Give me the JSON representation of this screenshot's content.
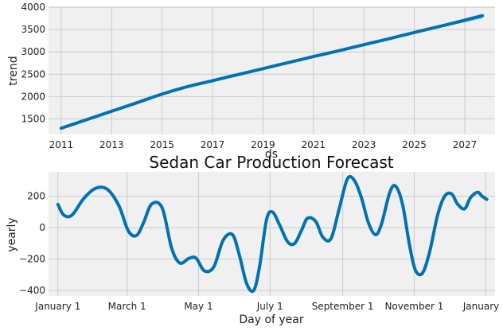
{
  "chart_data": [
    {
      "type": "line",
      "title": "",
      "xlabel": "ds",
      "ylabel": "trend",
      "xlim": [
        2010.5,
        2028.2
      ],
      "ylim": [
        1150,
        4020
      ],
      "x_ticks": [
        2011,
        2013,
        2015,
        2017,
        2019,
        2021,
        2023,
        2025,
        2027
      ],
      "x_tick_labels": [
        "2011",
        "2013",
        "2015",
        "2017",
        "2019",
        "2021",
        "2023",
        "2025",
        "2027"
      ],
      "y_ticks": [
        1500,
        2000,
        2500,
        3000,
        3500,
        4000
      ],
      "y_tick_labels": [
        "1500",
        "2000",
        "2500",
        "3000",
        "3500",
        "4000"
      ],
      "grid": true,
      "series": [
        {
          "color": "#0072B2",
          "x": [
            2011,
            2012,
            2013,
            2014,
            2015,
            2016,
            2017,
            2018,
            2019,
            2020,
            2021,
            2022,
            2023,
            2024,
            2025,
            2026,
            2027,
            2027.7
          ],
          "y": [
            1290,
            1480,
            1670,
            1860,
            2055,
            2220,
            2355,
            2490,
            2625,
            2760,
            2895,
            3025,
            3160,
            3295,
            3435,
            3570,
            3710,
            3810
          ]
        }
      ],
      "uncertainty_band": {
        "x": [
          2025.2,
          2026,
          2027,
          2027.7
        ],
        "lower": [
          3440,
          3540,
          3660,
          3740
        ],
        "upper": [
          3470,
          3595,
          3755,
          3860
        ],
        "color": "#0072B2"
      }
    },
    {
      "type": "line",
      "title": "Sedan Car Production Forecast",
      "xlabel": "Day of year",
      "ylabel": "yearly",
      "xlim": [
        -8,
        373
      ],
      "ylim": [
        -435,
        355
      ],
      "x_ticks": [
        0,
        59,
        120,
        181,
        243,
        304,
        365
      ],
      "x_tick_labels": [
        "January 1",
        "March 1",
        "May 1",
        "July 1",
        "September 1",
        "November 1",
        "January 1"
      ],
      "y_ticks": [
        -400,
        -200,
        0,
        200
      ],
      "y_tick_labels": [
        "−400",
        "−200",
        "0",
        "200"
      ],
      "grid": true,
      "series": [
        {
          "color": "#0072B2",
          "x": [
            0,
            5,
            12,
            22,
            32,
            42,
            52,
            60,
            67,
            73,
            80,
            89,
            97,
            104,
            112,
            118,
            125,
            133,
            141,
            149,
            155,
            161,
            167,
            172,
            178,
            183,
            189,
            196,
            202,
            208,
            213,
            220,
            226,
            233,
            240,
            247,
            253,
            259,
            265,
            271,
            276,
            283,
            288,
            294,
            300,
            305,
            311,
            317,
            324,
            330,
            336,
            341,
            347,
            352,
            358,
            362,
            366
          ],
          "y": [
            148,
            80,
            80,
            185,
            250,
            245,
            140,
            -20,
            -50,
            30,
            150,
            125,
            -130,
            -225,
            -195,
            -195,
            -275,
            -250,
            -80,
            -45,
            -180,
            -355,
            -400,
            -250,
            50,
            100,
            20,
            -90,
            -100,
            -15,
            60,
            40,
            -60,
            -70,
            120,
            310,
            300,
            190,
            30,
            -45,
            20,
            220,
            265,
            150,
            -110,
            -270,
            -290,
            -160,
            80,
            200,
            215,
            150,
            120,
            190,
            225,
            200,
            180
          ]
        }
      ]
    }
  ]
}
